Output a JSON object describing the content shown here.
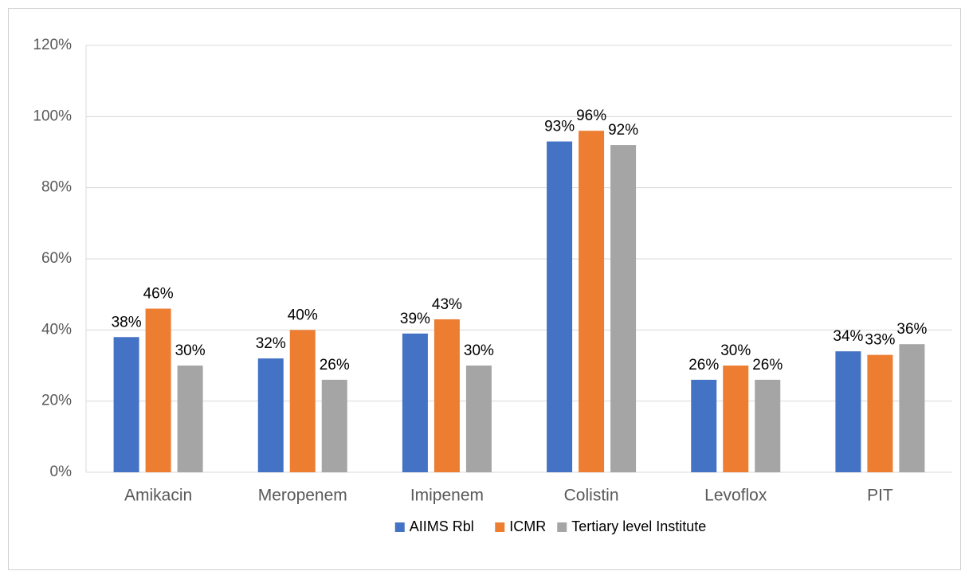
{
  "chart_data": {
    "type": "bar",
    "categories": [
      "Amikacin",
      "Meropenem",
      "Imipenem",
      "Colistin",
      "Levoflox",
      "PIT"
    ],
    "series": [
      {
        "name": "AIIMS Rbl",
        "color": "#4472c4",
        "values": [
          38,
          32,
          39,
          93,
          26,
          34
        ],
        "value_labels": [
          "38%",
          "32%",
          "39%",
          "93%",
          "26%",
          "34%"
        ]
      },
      {
        "name": "ICMR",
        "color": "#ed7d31",
        "values": [
          46,
          40,
          43,
          96,
          30,
          33
        ],
        "value_labels": [
          "46%",
          "40%",
          "43%",
          "96%",
          "30%",
          "33%"
        ]
      },
      {
        "name": "Tertiary level Institute",
        "color": "#a5a5a5",
        "values": [
          30,
          26,
          30,
          92,
          26,
          36
        ],
        "value_labels": [
          "30%",
          "26%",
          "30%",
          "92%",
          "26%",
          "36%"
        ]
      }
    ],
    "ylim": [
      0,
      120
    ],
    "yticks": [
      {
        "value": 0,
        "label": "0%"
      },
      {
        "value": 20,
        "label": "20%"
      },
      {
        "value": 40,
        "label": "40%"
      },
      {
        "value": 60,
        "label": "60%"
      },
      {
        "value": 80,
        "label": "80%"
      },
      {
        "value": 100,
        "label": "100%"
      },
      {
        "value": 120,
        "label": "120%"
      }
    ],
    "grid": true,
    "legend": "bottom"
  }
}
